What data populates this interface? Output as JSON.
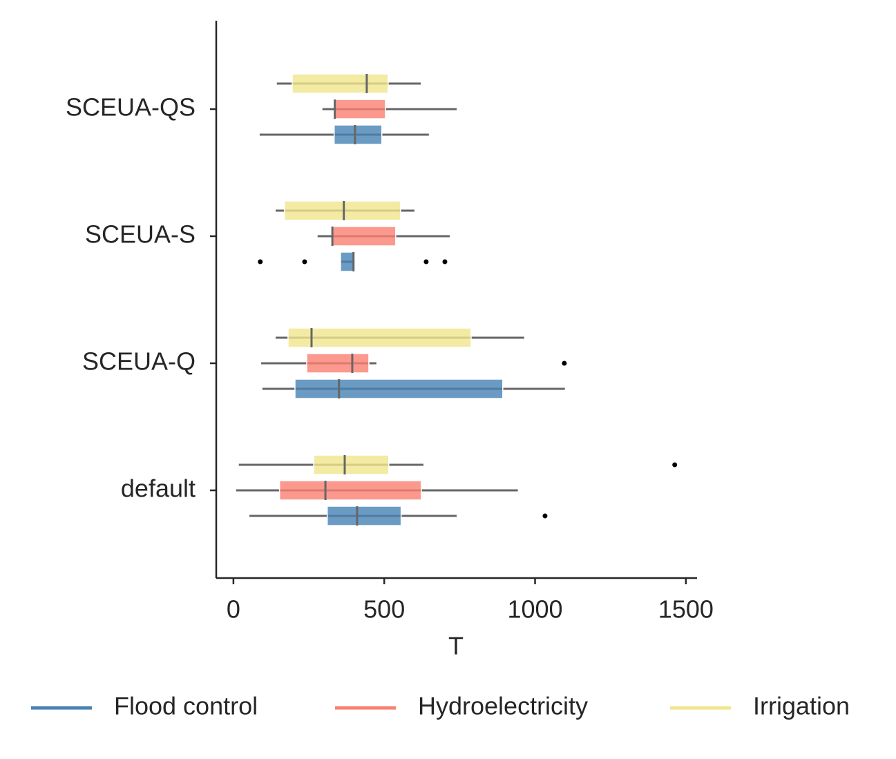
{
  "chart_data": {
    "type": "boxplot",
    "orientation": "horizontal",
    "x_label": "T",
    "categories": [
      "SCEUA-QS",
      "SCEUA-S",
      "SCEUA-Q",
      "default"
    ],
    "xlim": [
      -57,
      1537
    ],
    "xticks": [
      0,
      500,
      1000,
      1500
    ],
    "legend_position": "bottom",
    "series": [
      {
        "name": "Flood control",
        "color": "#4682b4",
        "boxes": [
          {
            "min": 87,
            "q1": 334,
            "median": 403,
            "q3": 492,
            "max": 648,
            "outliers": []
          },
          {
            "min": 355,
            "q1": 355,
            "median": 398,
            "q3": 403,
            "max": 403,
            "outliers": [
              89,
              236,
              639,
              701
            ]
          },
          {
            "min": 96,
            "q1": 204,
            "median": 350,
            "q3": 893,
            "max": 1099,
            "outliers": []
          },
          {
            "min": 53,
            "q1": 311,
            "median": 410,
            "q3": 556,
            "max": 740,
            "outliers": [
              1033
            ]
          }
        ]
      },
      {
        "name": "Hydroelectricity",
        "color": "#fa8072",
        "boxes": [
          {
            "min": 295,
            "q1": 336,
            "median": 336,
            "q3": 504,
            "max": 740,
            "outliers": []
          },
          {
            "min": 279,
            "q1": 328,
            "median": 328,
            "q3": 538,
            "max": 717,
            "outliers": []
          },
          {
            "min": 92,
            "q1": 243,
            "median": 394,
            "q3": 449,
            "max": 474,
            "outliers": [
              1097
            ]
          },
          {
            "min": 9,
            "q1": 153,
            "median": 305,
            "q3": 623,
            "max": 943,
            "outliers": []
          }
        ]
      },
      {
        "name": "Irrigation",
        "color": "#f0e68c",
        "boxes": [
          {
            "min": 144,
            "q1": 195,
            "median": 442,
            "q3": 513,
            "max": 621,
            "outliers": []
          },
          {
            "min": 140,
            "q1": 169,
            "median": 366,
            "q3": 554,
            "max": 600,
            "outliers": []
          },
          {
            "min": 140,
            "q1": 181,
            "median": 259,
            "q3": 788,
            "max": 964,
            "outliers": []
          },
          {
            "min": 18,
            "q1": 266,
            "median": 369,
            "q3": 515,
            "max": 630,
            "outliers": [
              1463
            ]
          }
        ]
      }
    ]
  }
}
